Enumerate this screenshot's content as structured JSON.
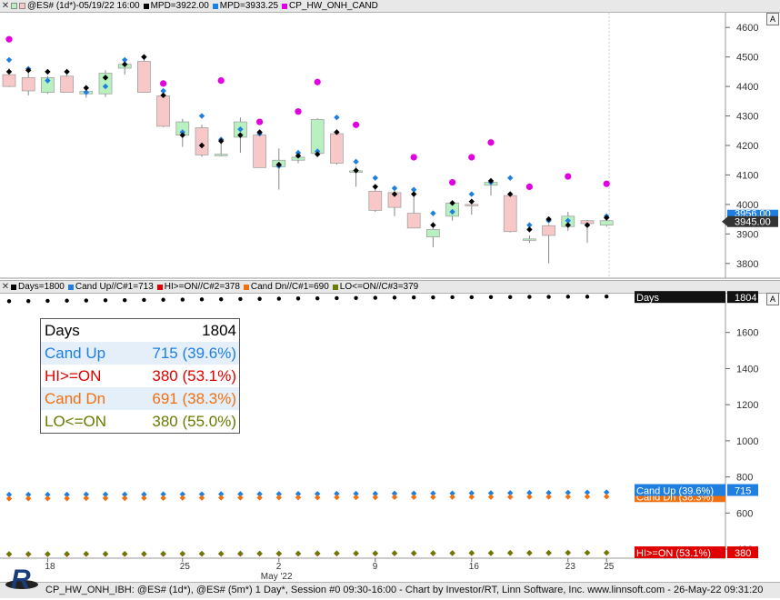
{
  "upper_legend": {
    "chart_title": "@ES# (1d*)-05/19/22 16:00",
    "mpd1": "MPD=3922.00",
    "mpd2": "MPD=3933.25",
    "indicator": "CP_HW_ONH_CAND",
    "colors": {
      "mpd1": "#000000",
      "mpd2": "#1f7fe0",
      "indicator": "#e000e0"
    }
  },
  "lower_legend": {
    "items": [
      {
        "label": "Days=1800",
        "color": "#000000"
      },
      {
        "label": "Cand Up//C#1=713",
        "color": "#1f7fe0"
      },
      {
        "label": "HI>=ON//C#2=378",
        "color": "#e00000"
      },
      {
        "label": "Cand Dn//C#1=690",
        "color": "#f07010"
      },
      {
        "label": "LO<=ON//C#3=379",
        "color": "#6b7a00"
      }
    ]
  },
  "autoscale_label": "A",
  "stats_table": [
    {
      "label": "Days",
      "value": "1804",
      "color": "#000000",
      "bg": "#ffffff"
    },
    {
      "label": "Cand Up",
      "value": "715 (39.6%)",
      "color": "#1f7fe0",
      "bg": "#e4effa"
    },
    {
      "label": "HI>=ON",
      "value": "380 (53.1%)",
      "color": "#e00000",
      "bg": "#ffffff"
    },
    {
      "label": "Cand Dn",
      "value": "691 (38.3%)",
      "color": "#f07010",
      "bg": "#e4effa"
    },
    {
      "label": "LO<=ON",
      "value": "380 (55.0%)",
      "color": "#6b7a00",
      "bg": "#ffffff"
    }
  ],
  "upper_price_labels": {
    "last_close": "3945.00",
    "overlapped": "3956.00"
  },
  "lower_value_labels": {
    "days_name": "Days",
    "days_val": "1804",
    "cand_up_name": "Cand Up (39.6%)",
    "cand_up_val": "715",
    "cand_dn_name": "Cand Dn (38.3%)",
    "hi_name": "HI>=ON (53.1%)",
    "hi_val": "380"
  },
  "footer_text": "CP_HW_ONH_IBH: @ES# (1d*), @ES# (5m*) 1 Day*, Session #0 09:30-16:00 - Chart by Investor/RT, Linn Software, Inc. www.linnsoft.com - 26-May-22 09:31:20",
  "logo_text": "R",
  "chart_data": [
    {
      "type": "candlestick",
      "title": "@ES# (1d*)-05/19/22 16:00",
      "y_ticks": [
        3800,
        3900,
        4000,
        4100,
        4200,
        4300,
        4400,
        4500,
        4600
      ],
      "ylim": [
        3750,
        4650
      ],
      "x_tick_labels": [
        {
          "index": 2,
          "label": "18"
        },
        {
          "index": 9,
          "label": "25"
        },
        {
          "index": 14,
          "label": "2"
        },
        {
          "index": 19,
          "label": "9"
        },
        {
          "index": 24,
          "label": "16"
        },
        {
          "index": 29,
          "label": "23"
        },
        {
          "index": 31,
          "label": "25"
        }
      ],
      "x_month_label": {
        "index": 14,
        "label": "May '22"
      },
      "candles": [
        {
          "o": 4440,
          "h": 4462,
          "l": 4398,
          "c": 4400
        },
        {
          "o": 4430,
          "h": 4460,
          "l": 4370,
          "c": 4385
        },
        {
          "o": 4380,
          "h": 4435,
          "l": 4375,
          "c": 4430
        },
        {
          "o": 4435,
          "h": 4440,
          "l": 4380,
          "c": 4380
        },
        {
          "o": 4375,
          "h": 4398,
          "l": 4362,
          "c": 4383
        },
        {
          "o": 4375,
          "h": 4455,
          "l": 4365,
          "c": 4445
        },
        {
          "o": 4462,
          "h": 4482,
          "l": 4440,
          "c": 4475
        },
        {
          "o": 4485,
          "h": 4505,
          "l": 4378,
          "c": 4380
        },
        {
          "o": 4368,
          "h": 4375,
          "l": 4262,
          "c": 4265
        },
        {
          "o": 4235,
          "h": 4290,
          "l": 4195,
          "c": 4280
        },
        {
          "o": 4260,
          "h": 4270,
          "l": 4162,
          "c": 4168
        },
        {
          "o": 4170,
          "h": 4220,
          "l": 4163,
          "c": 4170
        },
        {
          "o": 4228,
          "h": 4295,
          "l": 4175,
          "c": 4280
        },
        {
          "o": 4235,
          "h": 4238,
          "l": 4125,
          "c": 4125
        },
        {
          "o": 4128,
          "h": 4190,
          "l": 4050,
          "c": 4150
        },
        {
          "o": 4150,
          "h": 4185,
          "l": 4140,
          "c": 4160
        },
        {
          "o": 4173,
          "h": 4292,
          "l": 4165,
          "c": 4288
        },
        {
          "o": 4240,
          "h": 4255,
          "l": 4135,
          "c": 4140
        },
        {
          "o": 4112,
          "h": 4130,
          "l": 4060,
          "c": 4114
        },
        {
          "o": 4045,
          "h": 4060,
          "l": 3975,
          "c": 3980
        },
        {
          "o": 4040,
          "h": 4060,
          "l": 3960,
          "c": 3990
        },
        {
          "o": 3970,
          "h": 4030,
          "l": 3920,
          "c": 3920
        },
        {
          "o": 3890,
          "h": 3940,
          "l": 3855,
          "c": 3915
        },
        {
          "o": 3960,
          "h": 4010,
          "l": 3945,
          "c": 4005
        },
        {
          "o": 4000,
          "h": 4010,
          "l": 3965,
          "c": 3998
        },
        {
          "o": 4065,
          "h": 4080,
          "l": 4030,
          "c": 4075
        },
        {
          "o": 4030,
          "h": 4040,
          "l": 3905,
          "c": 3908
        },
        {
          "o": 3880,
          "h": 3895,
          "l": 3870,
          "c": 3883
        },
        {
          "o": 3928,
          "h": 3932,
          "l": 3800,
          "c": 3895
        },
        {
          "o": 3925,
          "h": 3975,
          "l": 3910,
          "c": 3960
        },
        {
          "o": 3945,
          "h": 3948,
          "l": 3870,
          "c": 3935
        },
        {
          "o": 3930,
          "h": 3955,
          "l": 3925,
          "c": 3945
        }
      ],
      "markers": {
        "black": [
          4450,
          4455,
          4450,
          4450,
          4395,
          4430,
          4475,
          4500,
          4370,
          4235,
          4200,
          4215,
          4235,
          4245,
          4135,
          4165,
          4170,
          4245,
          4115,
          4060,
          4035,
          4035,
          3930,
          4005,
          4010,
          4080,
          4035,
          3915,
          3950,
          3930,
          3930,
          3955
        ],
        "blue": [
          4490,
          4460,
          4420,
          null,
          4380,
          4400,
          4490,
          4500,
          4385,
          4245,
          4300,
          4220,
          4255,
          4240,
          4130,
          4175,
          4180,
          4295,
          4145,
          4090,
          4055,
          4050,
          3970,
          3975,
          4035,
          4075,
          4090,
          3930,
          3945,
          3945,
          3930,
          3960
        ],
        "magenta": [
          4560,
          null,
          null,
          null,
          null,
          null,
          null,
          null,
          4410,
          null,
          null,
          4420,
          null,
          4280,
          null,
          4315,
          4415,
          null,
          4270,
          null,
          null,
          4160,
          null,
          4075,
          4160,
          4210,
          null,
          4060,
          null,
          4095,
          null,
          4070
        ]
      }
    },
    {
      "type": "scatter",
      "y_ticks": [
        400,
        600,
        800,
        1000,
        1200,
        1400,
        1600
      ],
      "ylim": [
        350,
        1820
      ],
      "series": [
        {
          "name": "Days=1800",
          "color": "#000000",
          "values": [
            1778,
            1779,
            1780,
            1781,
            1782,
            1783,
            1784,
            1785,
            1786,
            1787,
            1788,
            1789,
            1790,
            1791,
            1792,
            1793,
            1794,
            1795,
            1796,
            1797,
            1798,
            1799,
            1799,
            1800,
            1800,
            1801,
            1801,
            1802,
            1802,
            1803,
            1803,
            1804
          ]
        },
        {
          "name": "Cand Up//C#1=713",
          "color": "#1f7fe0",
          "values": [
            702,
            702,
            702,
            702,
            703,
            703,
            703,
            703,
            704,
            704,
            704,
            705,
            705,
            705,
            705,
            706,
            706,
            707,
            707,
            707,
            708,
            708,
            709,
            709,
            710,
            710,
            711,
            712,
            712,
            713,
            714,
            715
          ]
        },
        {
          "name": "Cand Dn//C#1=690",
          "color": "#f07010",
          "values": [
            680,
            681,
            681,
            681,
            682,
            682,
            682,
            683,
            683,
            684,
            684,
            685,
            685,
            685,
            686,
            686,
            686,
            687,
            687,
            687,
            688,
            688,
            688,
            689,
            689,
            689,
            689,
            690,
            690,
            690,
            691,
            691
          ]
        },
        {
          "name": "HI>=ON//C#2=378",
          "color": "#e00000",
          "values": [
            372,
            372,
            372,
            372,
            373,
            373,
            373,
            373,
            373,
            374,
            374,
            374,
            374,
            375,
            375,
            375,
            375,
            376,
            376,
            376,
            377,
            377,
            377,
            378,
            378,
            378,
            379,
            379,
            379,
            380,
            380,
            380
          ]
        },
        {
          "name": "LO<=ON//C#3=379",
          "color": "#6b7a00",
          "values": [
            373,
            373,
            373,
            374,
            374,
            374,
            374,
            374,
            375,
            375,
            375,
            375,
            376,
            376,
            376,
            376,
            377,
            377,
            377,
            377,
            378,
            378,
            378,
            378,
            379,
            379,
            379,
            379,
            380,
            380,
            380,
            380
          ]
        }
      ]
    }
  ]
}
